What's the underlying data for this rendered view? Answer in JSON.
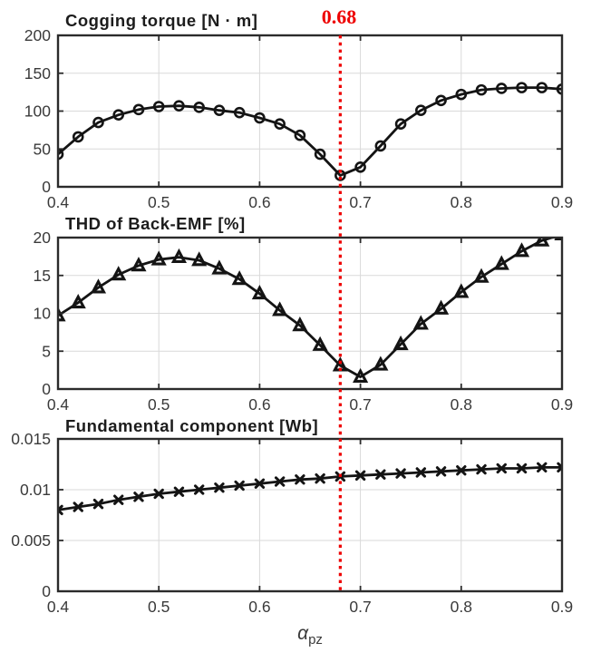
{
  "figure": {
    "annotation": {
      "label": "0.68",
      "x_value": 0.68,
      "color": "#ee0000",
      "line_style": "dotted"
    },
    "x_axis": {
      "label_main": "α",
      "label_sub": "pz",
      "range": [
        0.4,
        0.9
      ],
      "ticks": [
        0.4,
        0.5,
        0.6,
        0.7,
        0.8,
        0.9
      ],
      "tick_labels": [
        "0.4",
        "0.5",
        "0.6",
        "0.7",
        "0.8",
        "0.9"
      ]
    },
    "colors": {
      "line": "#141414",
      "marker": "#141414",
      "grid": "#d9d9d9",
      "axis": "#2b2b2b",
      "tick_text": "#3a3a3a",
      "title_text": "#1c1c1c",
      "background": "#ffffff"
    }
  },
  "chart_data": [
    {
      "type": "line",
      "title": "Cogging torque [N · m]",
      "marker": "circle",
      "legend": null,
      "grid": true,
      "xlim": [
        0.4,
        0.9
      ],
      "ylim": [
        0,
        200
      ],
      "yticks": [
        0,
        50,
        100,
        150,
        200
      ],
      "ytick_labels": [
        "0",
        "50",
        "100",
        "150",
        "200"
      ],
      "x": [
        0.4,
        0.42,
        0.44,
        0.46,
        0.48,
        0.5,
        0.52,
        0.54,
        0.56,
        0.58,
        0.6,
        0.62,
        0.64,
        0.66,
        0.68,
        0.7,
        0.72,
        0.74,
        0.76,
        0.78,
        0.8,
        0.82,
        0.84,
        0.86,
        0.88,
        0.9
      ],
      "values": [
        43,
        66,
        85,
        95,
        102,
        106,
        107,
        105,
        101,
        98,
        91,
        83,
        68,
        43,
        15,
        26,
        54,
        83,
        101,
        114,
        122,
        128,
        130,
        131,
        131,
        129
      ]
    },
    {
      "type": "line",
      "title": "THD of Back-EMF [%]",
      "marker": "triangle",
      "legend": null,
      "grid": true,
      "xlim": [
        0.4,
        0.9
      ],
      "ylim": [
        0,
        20
      ],
      "yticks": [
        0,
        5,
        10,
        15,
        20
      ],
      "ytick_labels": [
        "0",
        "5",
        "10",
        "15",
        "20"
      ],
      "x": [
        0.4,
        0.42,
        0.44,
        0.46,
        0.48,
        0.5,
        0.52,
        0.54,
        0.56,
        0.58,
        0.6,
        0.62,
        0.64,
        0.66,
        0.68,
        0.7,
        0.72,
        0.74,
        0.76,
        0.78,
        0.8,
        0.82,
        0.84,
        0.86,
        0.88,
        0.9
      ],
      "values": [
        9.7,
        11.4,
        13.4,
        15.1,
        16.3,
        17.1,
        17.4,
        17.0,
        15.9,
        14.5,
        12.6,
        10.4,
        8.4,
        5.8,
        3.1,
        1.6,
        3.2,
        5.9,
        8.6,
        10.6,
        12.8,
        14.8,
        16.5,
        18.2,
        19.6,
        20.4
      ]
    },
    {
      "type": "line",
      "title": "Fundamental component [Wb]",
      "marker": "x",
      "legend": null,
      "grid": true,
      "xlim": [
        0.4,
        0.9
      ],
      "ylim": [
        0,
        0.015
      ],
      "yticks": [
        0,
        0.005,
        0.01,
        0.015
      ],
      "ytick_labels": [
        "0",
        "0.005",
        "0.01",
        "0.015"
      ],
      "x": [
        0.4,
        0.42,
        0.44,
        0.46,
        0.48,
        0.5,
        0.52,
        0.54,
        0.56,
        0.58,
        0.6,
        0.62,
        0.64,
        0.66,
        0.68,
        0.7,
        0.72,
        0.74,
        0.76,
        0.78,
        0.8,
        0.82,
        0.84,
        0.86,
        0.88,
        0.9
      ],
      "values": [
        0.008,
        0.0083,
        0.0086,
        0.009,
        0.0093,
        0.0096,
        0.0098,
        0.01,
        0.0102,
        0.0104,
        0.0106,
        0.0108,
        0.011,
        0.0111,
        0.0113,
        0.0114,
        0.0115,
        0.0116,
        0.0117,
        0.0118,
        0.0119,
        0.012,
        0.0121,
        0.0121,
        0.0122,
        0.0122
      ]
    }
  ]
}
